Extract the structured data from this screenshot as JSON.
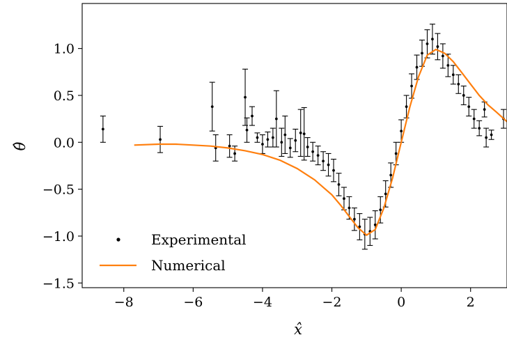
{
  "chart_data": {
    "type": "scatter",
    "xlabel": "x̂",
    "ylabel": "θ̂",
    "xlim": [
      -9.2,
      3.05
    ],
    "ylim": [
      -1.55,
      1.48
    ],
    "x_ticks": [
      -8,
      -6,
      -4,
      -2,
      0,
      2
    ],
    "x_tick_labels": [
      "−8",
      "−6",
      "−4",
      "−2",
      "0",
      "2"
    ],
    "y_ticks": [
      -1.5,
      -1.0,
      -0.5,
      0.0,
      0.5,
      1.0
    ],
    "y_tick_labels": [
      "−1.5",
      "−1.0",
      "−0.5",
      "0.0",
      "0.5",
      "1.0"
    ],
    "grid": false,
    "legend_position": "lower-left",
    "series": [
      {
        "name": "Experimental",
        "kind": "errorbar",
        "color": "#000000",
        "points": [
          {
            "x": -8.6,
            "y": 0.14,
            "err": 0.14
          },
          {
            "x": -6.95,
            "y": 0.03,
            "err": 0.14
          },
          {
            "x": -5.45,
            "y": 0.38,
            "err": 0.26
          },
          {
            "x": -5.35,
            "y": -0.06,
            "err": 0.14
          },
          {
            "x": -4.95,
            "y": -0.04,
            "err": 0.12
          },
          {
            "x": -4.8,
            "y": -0.12,
            "err": 0.08
          },
          {
            "x": -4.5,
            "y": 0.48,
            "err": 0.3
          },
          {
            "x": -4.45,
            "y": 0.13,
            "err": 0.13
          },
          {
            "x": -4.3,
            "y": 0.28,
            "err": 0.1
          },
          {
            "x": -4.15,
            "y": 0.05,
            "err": 0.05
          },
          {
            "x": -4.0,
            "y": -0.02,
            "err": 0.1
          },
          {
            "x": -3.85,
            "y": 0.03,
            "err": 0.08
          },
          {
            "x": -3.7,
            "y": 0.05,
            "err": 0.1
          },
          {
            "x": -3.6,
            "y": 0.25,
            "err": 0.3
          },
          {
            "x": -3.45,
            "y": 0.0,
            "err": 0.15
          },
          {
            "x": -3.35,
            "y": 0.08,
            "err": 0.2
          },
          {
            "x": -3.2,
            "y": -0.06,
            "err": 0.1
          },
          {
            "x": -3.05,
            "y": 0.02,
            "err": 0.12
          },
          {
            "x": -2.9,
            "y": 0.1,
            "err": 0.25
          },
          {
            "x": -2.8,
            "y": 0.09,
            "err": 0.28
          },
          {
            "x": -2.7,
            "y": -0.05,
            "err": 0.1
          },
          {
            "x": -2.55,
            "y": -0.1,
            "err": 0.1
          },
          {
            "x": -2.4,
            "y": -0.14,
            "err": 0.1
          },
          {
            "x": -2.25,
            "y": -0.2,
            "err": 0.1
          },
          {
            "x": -2.1,
            "y": -0.24,
            "err": 0.12
          },
          {
            "x": -1.95,
            "y": -0.3,
            "err": 0.12
          },
          {
            "x": -1.8,
            "y": -0.45,
            "err": 0.12
          },
          {
            "x": -1.65,
            "y": -0.6,
            "err": 0.12
          },
          {
            "x": -1.5,
            "y": -0.7,
            "err": 0.12
          },
          {
            "x": -1.35,
            "y": -0.82,
            "err": 0.12
          },
          {
            "x": -1.2,
            "y": -0.9,
            "err": 0.14
          },
          {
            "x": -1.05,
            "y": -0.98,
            "err": 0.16
          },
          {
            "x": -0.9,
            "y": -0.95,
            "err": 0.15
          },
          {
            "x": -0.75,
            "y": -0.88,
            "err": 0.15
          },
          {
            "x": -0.6,
            "y": -0.72,
            "err": 0.14
          },
          {
            "x": -0.45,
            "y": -0.55,
            "err": 0.14
          },
          {
            "x": -0.3,
            "y": -0.35,
            "err": 0.13
          },
          {
            "x": -0.15,
            "y": -0.12,
            "err": 0.12
          },
          {
            "x": 0.0,
            "y": 0.12,
            "err": 0.12
          },
          {
            "x": 0.15,
            "y": 0.38,
            "err": 0.12
          },
          {
            "x": 0.3,
            "y": 0.6,
            "err": 0.13
          },
          {
            "x": 0.45,
            "y": 0.8,
            "err": 0.13
          },
          {
            "x": 0.6,
            "y": 0.95,
            "err": 0.14
          },
          {
            "x": 0.75,
            "y": 1.05,
            "err": 0.15
          },
          {
            "x": 0.9,
            "y": 1.1,
            "err": 0.16
          },
          {
            "x": 1.05,
            "y": 1.02,
            "err": 0.14
          },
          {
            "x": 1.2,
            "y": 0.92,
            "err": 0.13
          },
          {
            "x": 1.35,
            "y": 0.82,
            "err": 0.12
          },
          {
            "x": 1.5,
            "y": 0.72,
            "err": 0.1
          },
          {
            "x": 1.65,
            "y": 0.62,
            "err": 0.1
          },
          {
            "x": 1.8,
            "y": 0.5,
            "err": 0.1
          },
          {
            "x": 1.95,
            "y": 0.38,
            "err": 0.1
          },
          {
            "x": 2.1,
            "y": 0.25,
            "err": 0.1
          },
          {
            "x": 2.25,
            "y": 0.15,
            "err": 0.08
          },
          {
            "x": 2.4,
            "y": 0.35,
            "err": 0.08
          },
          {
            "x": 2.45,
            "y": 0.05,
            "err": 0.1
          },
          {
            "x": 2.6,
            "y": 0.08,
            "err": 0.05
          },
          {
            "x": 2.95,
            "y": 0.25,
            "err": 0.1
          }
        ]
      },
      {
        "name": "Numerical",
        "kind": "line",
        "color": "#ff7f0e",
        "x": [
          -7.7,
          -7.0,
          -6.5,
          -6.0,
          -5.5,
          -5.0,
          -4.5,
          -4.0,
          -3.5,
          -3.0,
          -2.5,
          -2.0,
          -1.75,
          -1.5,
          -1.25,
          -1.0,
          -0.75,
          -0.5,
          -0.25,
          0.0,
          0.25,
          0.5,
          0.75,
          1.0,
          1.25,
          1.5,
          1.75,
          2.0,
          2.25,
          2.5,
          2.75,
          3.05
        ],
        "y": [
          -0.03,
          -0.02,
          -0.02,
          -0.03,
          -0.04,
          -0.06,
          -0.09,
          -0.13,
          -0.19,
          -0.28,
          -0.4,
          -0.56,
          -0.67,
          -0.79,
          -0.91,
          -0.99,
          -0.93,
          -0.7,
          -0.38,
          0.0,
          0.38,
          0.7,
          0.93,
          0.99,
          0.95,
          0.86,
          0.74,
          0.62,
          0.5,
          0.4,
          0.32,
          0.22
        ]
      }
    ]
  }
}
